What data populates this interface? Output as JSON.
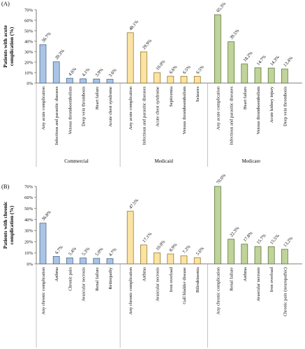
{
  "chart_data": [
    {
      "type": "bar",
      "panel_label": "(A)",
      "ylabel": "Patients with acute complication (%)",
      "ylabel_lines": [
        "Patients with acute",
        "complication (%)"
      ],
      "ylim": [
        0,
        70
      ],
      "yticks": [
        "0%",
        "10%",
        "20%",
        "30%",
        "40%",
        "50%",
        "60%",
        "70%"
      ],
      "grid": false,
      "groups": [
        {
          "name": "Commercial",
          "color": "#a9c4e4",
          "stroke": "#3b5a82",
          "categories": [
            "Any acute complication",
            "Infectious and parasitic diseases",
            "Venous thromboembolism",
            "Deep vein thrombosis",
            "Heart failure",
            "Acute chest syndrome"
          ],
          "values": [
            36.7,
            20.3,
            4.6,
            4.1,
            3.9,
            3.6
          ],
          "value_labels": [
            "36.7%",
            "20.3%",
            "4.6%",
            "4.1%",
            "3.9%",
            "3.6%"
          ]
        },
        {
          "name": "Medicaid",
          "color": "#fbe3a3",
          "stroke": "#8a6a17",
          "categories": [
            "Any acute complication",
            "Infectious and parasitic diseases",
            "Acute chest syndrome",
            "Septicemia",
            "Venous thromboembolism",
            "Seizures"
          ],
          "values": [
            48.1,
            29.9,
            10.0,
            6.6,
            6.5,
            6.5
          ],
          "value_labels": [
            "48.1%",
            "29.9%",
            "10.0%",
            "6.6%",
            "6.5%",
            "6.5%"
          ]
        },
        {
          "name": "Medicare",
          "color": "#bfd39a",
          "stroke": "#4f6a2a",
          "categories": [
            "Any acute complication",
            "Infectious and parasitic diseases",
            "Heart failure",
            "Venous thromboembolism",
            "Acute kidney injury",
            "Deep vein thrombosis"
          ],
          "values": [
            65.3,
            39.5,
            18.2,
            14.7,
            14.3,
            13.4
          ],
          "value_labels": [
            "65.3%",
            "39.5%",
            "18.2%",
            "14.7%",
            "14.3%",
            "13.4%"
          ]
        }
      ]
    },
    {
      "type": "bar",
      "panel_label": "(B)",
      "ylabel": "Patients with chronic complication (%)",
      "ylabel_lines": [
        "Patients with chronic",
        "complication (%)"
      ],
      "ylim": [
        0,
        70
      ],
      "yticks": [
        "0%",
        "10%",
        "20%",
        "30%",
        "40%",
        "50%",
        "60%",
        "70%"
      ],
      "grid": false,
      "groups": [
        {
          "name": "",
          "color": "#a9c4e4",
          "stroke": "#3b5a82",
          "categories": [
            "Any chronic complication",
            "Asthma",
            "Chronic pain",
            "Avascular necrosis",
            "Renal failure",
            "Retinopathy"
          ],
          "values": [
            36.8,
            6.7,
            5.4,
            5.3,
            5.0,
            4.7
          ],
          "value_labels": [
            "36.8%",
            "6.7%",
            "5.4%",
            "5.3%",
            "5.0%",
            "4.7%"
          ]
        },
        {
          "name": "",
          "color": "#fbe3a3",
          "stroke": "#8a6a17",
          "categories": [
            "Any chronic complication",
            "Asthma",
            "Avascular necrosis",
            "Iron overload",
            "Gall bladder disease",
            "Bilirubinemia"
          ],
          "values": [
            47.5,
            17.1,
            10.0,
            8.9,
            7.2,
            5.6
          ],
          "value_labels": [
            "47.5%",
            "17.1%",
            "10.0%",
            "8.9%",
            "7.2%",
            "5.6%"
          ]
        },
        {
          "name": "",
          "color": "#bfd39a",
          "stroke": "#4f6a2a",
          "categories": [
            "Any chronic complication",
            "Renal failure",
            "Asthma",
            "Avascular necrosis",
            "Iron overload",
            "Chronic pain (neuropathic)"
          ],
          "values": [
            70.0,
            22.3,
            17.8,
            15.7,
            15.5,
            13.2
          ],
          "value_labels": [
            "70.0%",
            "22.3%",
            "17.8%",
            "15.7%",
            "15.5%",
            "13.2%"
          ]
        }
      ]
    }
  ]
}
